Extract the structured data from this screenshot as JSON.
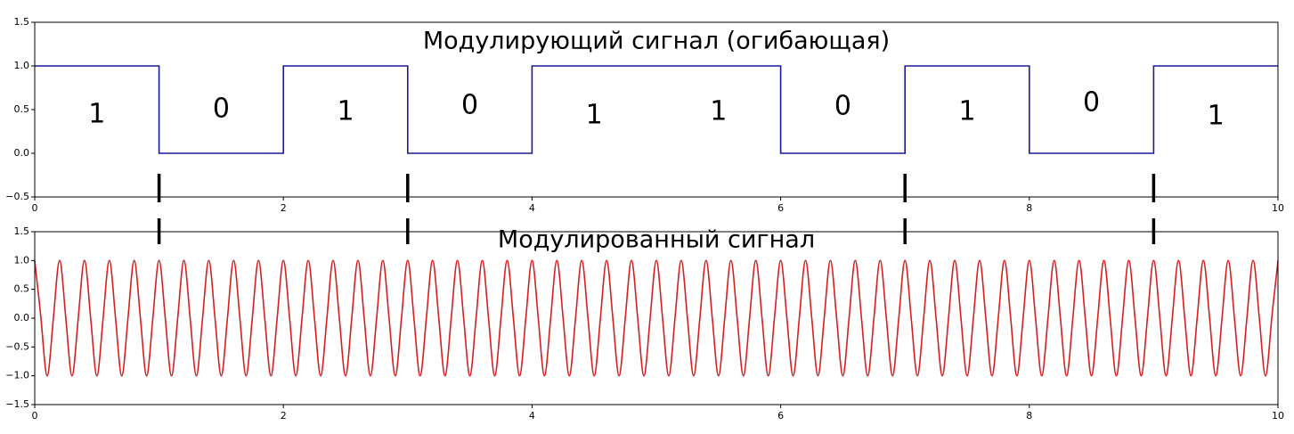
{
  "chart_data": [
    {
      "type": "line",
      "title": "Модулирующий сигнал (огибающая)",
      "annotations": [
        "1",
        "0",
        "1",
        "0",
        "1",
        "1",
        "0",
        "1",
        "0",
        "1"
      ],
      "transitions": [
        1,
        3,
        7,
        9
      ],
      "xlim": [
        0,
        10
      ],
      "xticks": [
        0,
        2,
        4,
        6,
        8,
        10
      ],
      "ylim": [
        -0.5,
        1.5
      ],
      "yticks": [
        {
          "value": -0.5,
          "label": "−0.5"
        },
        {
          "value": 0,
          "label": "0.0"
        },
        0.5,
        {
          "value": 1,
          "label": "1.0"
        },
        1.5
      ],
      "series": [
        {
          "color": "#1a1a9c",
          "x": [
            0,
            1,
            1,
            2,
            2,
            3,
            3,
            4,
            4,
            6,
            6,
            7,
            7,
            8,
            8,
            9,
            9,
            10
          ],
          "values": [
            1,
            1,
            0,
            0,
            1,
            1,
            0,
            0,
            1,
            1,
            0,
            0,
            1,
            1,
            0,
            0,
            1,
            1
          ]
        }
      ]
    },
    {
      "type": "line",
      "title": "Модулированный сигнал",
      "smooth": true,
      "xlim": [
        0,
        10
      ],
      "xticks": [
        0,
        2,
        4,
        6,
        8,
        10
      ],
      "ylim": [
        -1.5,
        1.5
      ],
      "yticks": [
        {
          "value": -1.5,
          "label": "−1.5"
        },
        {
          "value": -1,
          "label": "−1.0"
        },
        {
          "value": -0.5,
          "label": "−0.5"
        },
        {
          "value": 0,
          "label": "0.0"
        },
        0.5,
        {
          "value": 1,
          "label": "1.0"
        },
        1.5
      ],
      "series": [
        {
          "color": "#d62020",
          "x": [
            0,
            0.05,
            0.1,
            0.15,
            0.2,
            0.25,
            0.3,
            0.35,
            0.4,
            0.45,
            0.5,
            0.55,
            0.6,
            0.65,
            0.7,
            0.75,
            0.8,
            0.85,
            0.9,
            0.95,
            1,
            1.05,
            1.1,
            1.15,
            1.2,
            1.25,
            1.3,
            1.35,
            1.4,
            1.45,
            1.5,
            1.55,
            1.6,
            1.65,
            1.7,
            1.75,
            1.8,
            1.85,
            1.9,
            1.95,
            2,
            2.05,
            2.1,
            2.15,
            2.2,
            2.25,
            2.3,
            2.35,
            2.4,
            2.45,
            2.5,
            2.55,
            2.6,
            2.65,
            2.7,
            2.75,
            2.8,
            2.85,
            2.9,
            2.95,
            3,
            3.05,
            3.1,
            3.15,
            3.2,
            3.25,
            3.3,
            3.35,
            3.4,
            3.45,
            3.5,
            3.55,
            3.6,
            3.65,
            3.7,
            3.75,
            3.8,
            3.85,
            3.9,
            3.95,
            4,
            4.05,
            4.1,
            4.15,
            4.2,
            4.25,
            4.3,
            4.35,
            4.4,
            4.45,
            4.5,
            4.55,
            4.6,
            4.65,
            4.7,
            4.75,
            4.8,
            4.85,
            4.9,
            4.95,
            5,
            5.05,
            5.1,
            5.15,
            5.2,
            5.25,
            5.3,
            5.35,
            5.4,
            5.45,
            5.5,
            5.55,
            5.6,
            5.65,
            5.7,
            5.75,
            5.8,
            5.85,
            5.9,
            5.95,
            6,
            6.05,
            6.1,
            6.15,
            6.2,
            6.25,
            6.3,
            6.35,
            6.4,
            6.45,
            6.5,
            6.55,
            6.6,
            6.65,
            6.7,
            6.75,
            6.8,
            6.85,
            6.9,
            6.95,
            7,
            7.05,
            7.1,
            7.15,
            7.2,
            7.25,
            7.3,
            7.35,
            7.4,
            7.45,
            7.5,
            7.55,
            7.6,
            7.65,
            7.7,
            7.75,
            7.8,
            7.85,
            7.9,
            7.95,
            8,
            8.05,
            8.1,
            8.15,
            8.2,
            8.25,
            8.3,
            8.35,
            8.4,
            8.45,
            8.5,
            8.55,
            8.6,
            8.65,
            8.7,
            8.75,
            8.8,
            8.85,
            8.9,
            8.95,
            9,
            9.05,
            9.1,
            9.15,
            9.2,
            9.25,
            9.3,
            9.35,
            9.4,
            9.45,
            9.5,
            9.55,
            9.6,
            9.65,
            9.7,
            9.75,
            9.8,
            9.85,
            9.9,
            9.95,
            10
          ],
          "values": [
            1,
            0,
            -1,
            0,
            1,
            0,
            -1,
            0,
            1,
            0,
            -1,
            0,
            1,
            0,
            -1,
            0,
            1,
            0,
            -1,
            0,
            1,
            0,
            -1,
            0,
            1,
            0,
            -1,
            0,
            1,
            0,
            -1,
            0,
            1,
            0,
            -1,
            0,
            1,
            0,
            -1,
            0,
            1,
            0,
            -1,
            0,
            1,
            0,
            -1,
            0,
            1,
            0,
            -1,
            0,
            1,
            0,
            -1,
            0,
            1,
            0,
            -1,
            0,
            1,
            0,
            -1,
            0,
            1,
            0,
            -1,
            0,
            1,
            0,
            -1,
            0,
            1,
            0,
            -1,
            0,
            1,
            0,
            -1,
            0,
            1,
            0,
            -1,
            0,
            1,
            0,
            -1,
            0,
            1,
            0,
            -1,
            0,
            1,
            0,
            -1,
            0,
            1,
            0,
            -1,
            0,
            1,
            0,
            -1,
            0,
            1,
            0,
            -1,
            0,
            1,
            0,
            -1,
            0,
            1,
            0,
            -1,
            0,
            1,
            0,
            -1,
            0,
            1,
            0,
            -1,
            0,
            1,
            0,
            -1,
            0,
            1,
            0,
            -1,
            0,
            1,
            0,
            -1,
            0,
            1,
            0,
            -1,
            0,
            1,
            0,
            -1,
            0,
            1,
            0,
            -1,
            0,
            1,
            0,
            -1,
            0,
            1,
            0,
            -1,
            0,
            1,
            0,
            -1,
            0,
            1,
            0,
            -1,
            0,
            1,
            0,
            -1,
            0,
            1,
            0,
            -1,
            0,
            1,
            0,
            -1,
            0,
            1,
            0,
            -1,
            0,
            1,
            0,
            -1,
            0,
            1,
            0,
            -1,
            0,
            1,
            0,
            -1,
            0,
            1,
            0,
            -1,
            0,
            1,
            0,
            -1,
            0,
            1
          ]
        }
      ]
    }
  ]
}
